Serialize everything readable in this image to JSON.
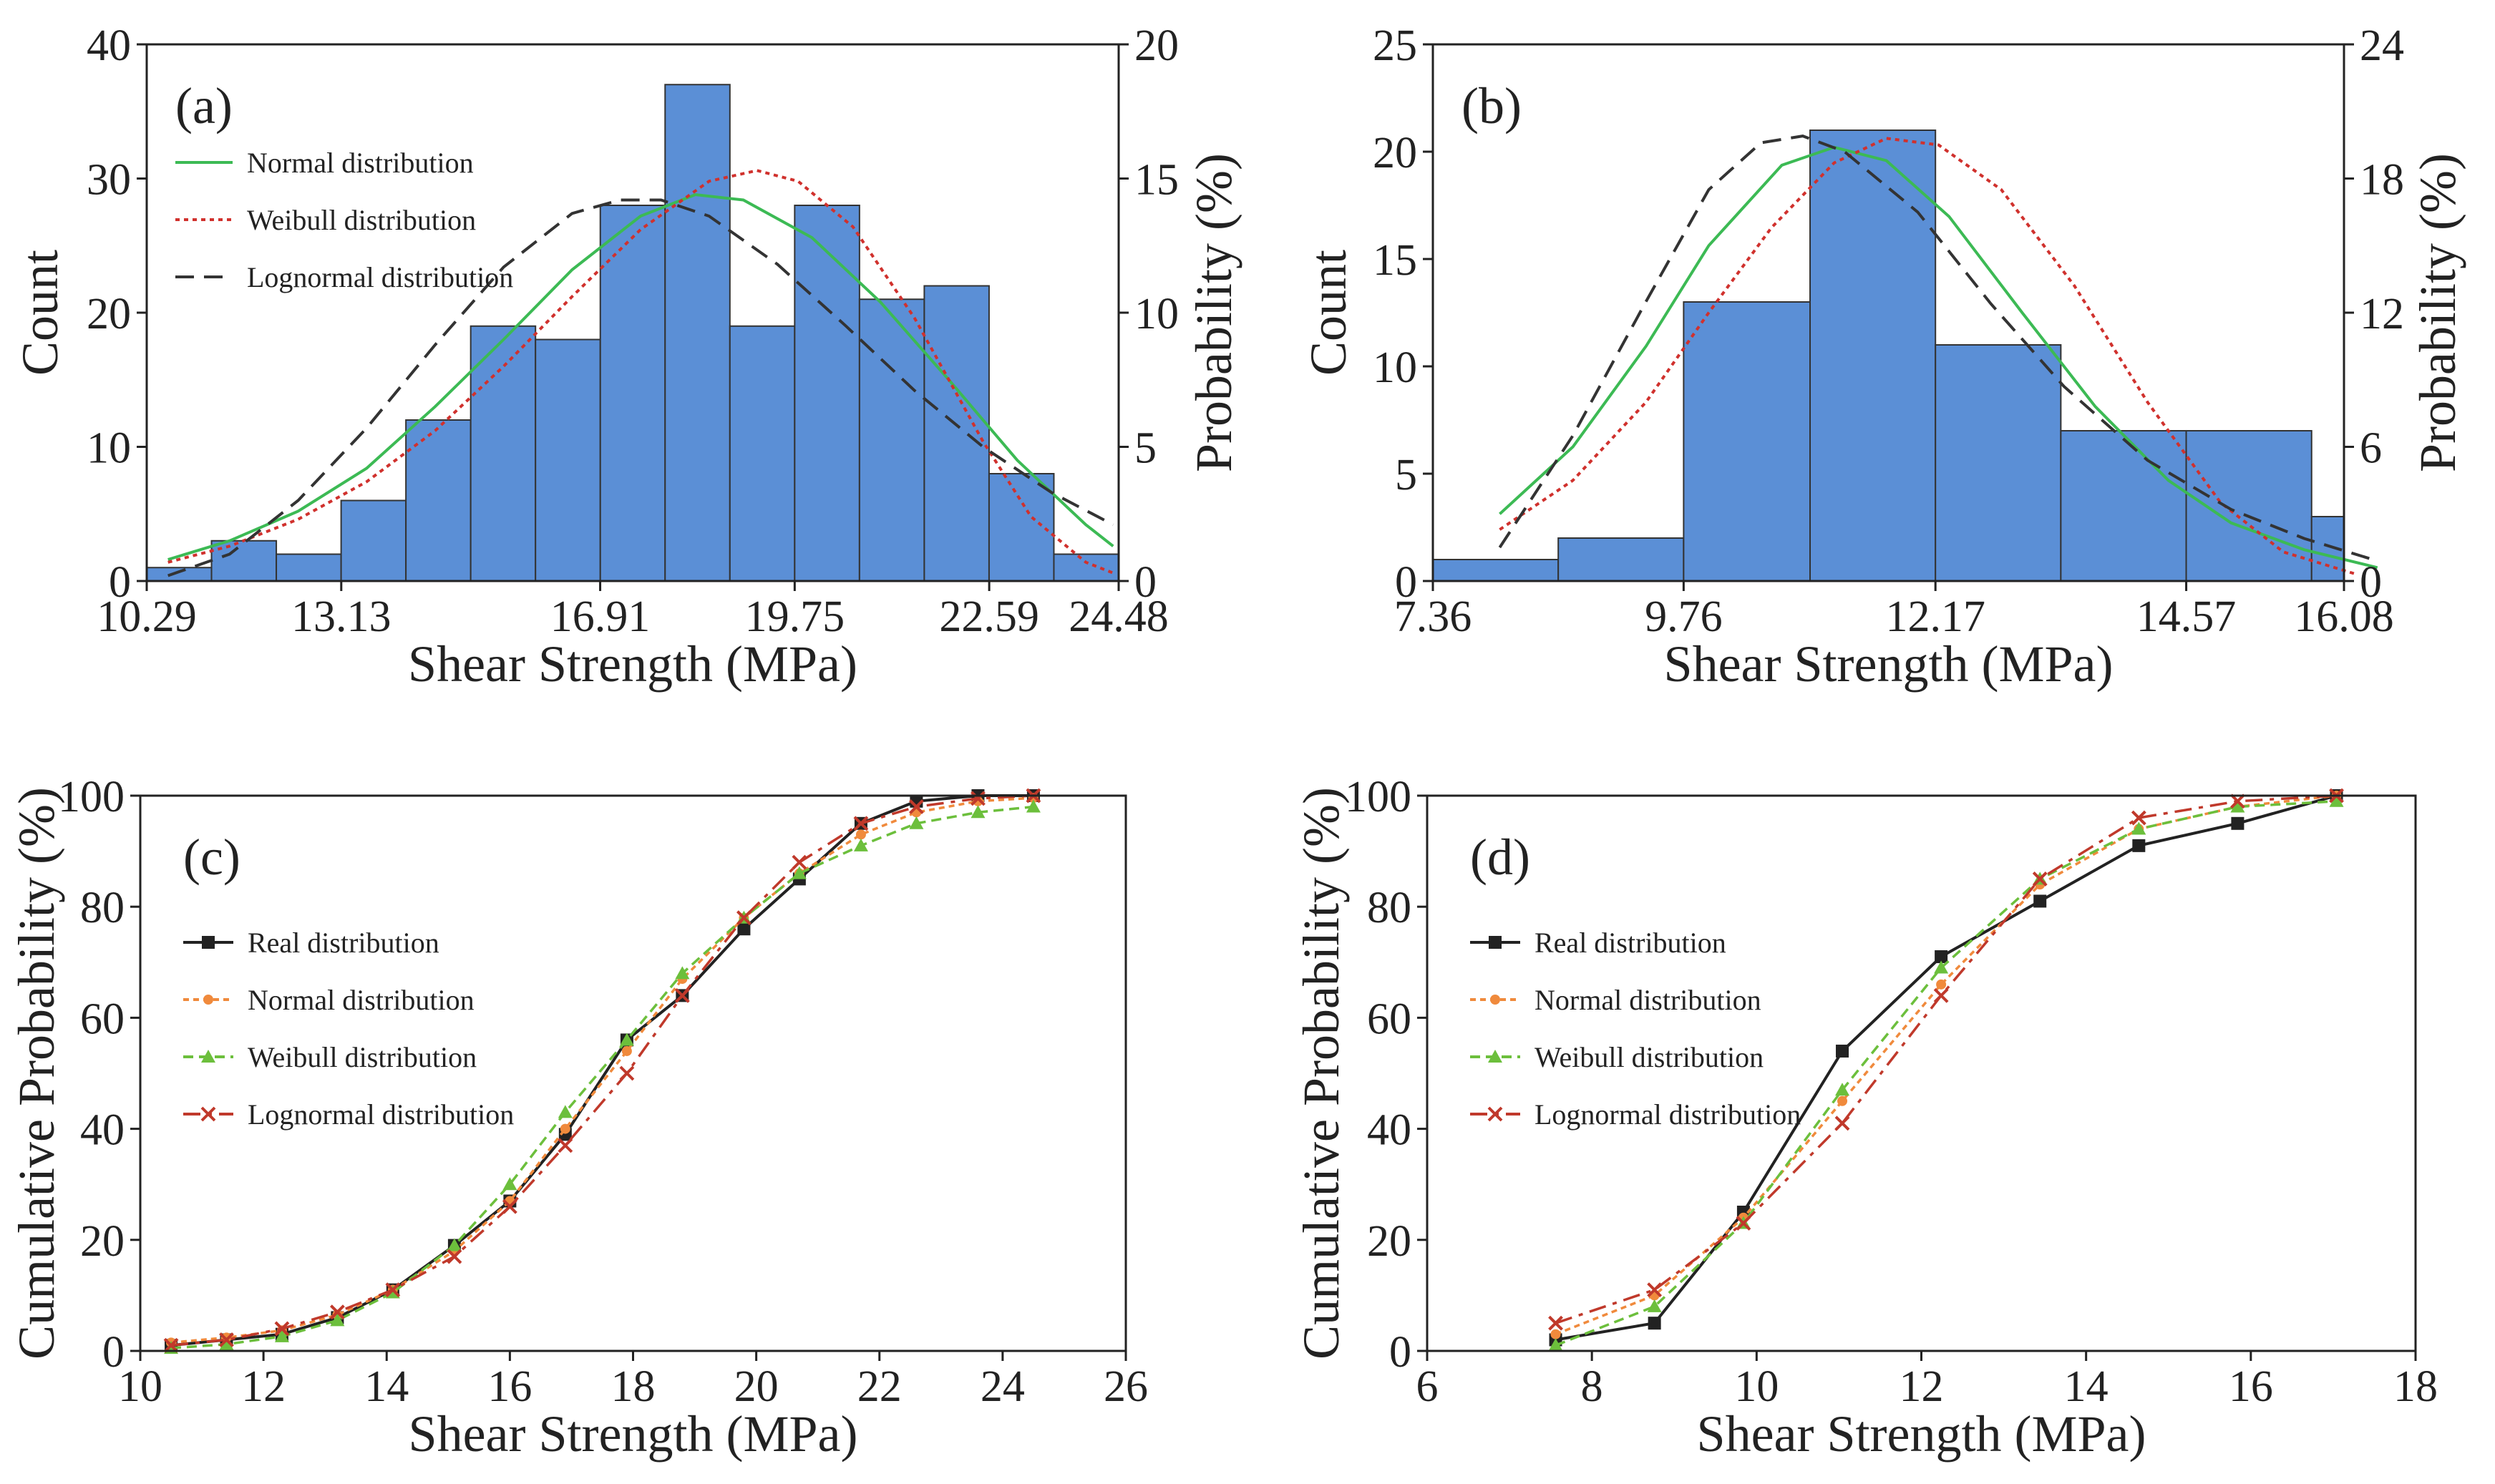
{
  "panels": [
    {
      "id": "a",
      "label": "(a)",
      "type": "histogram",
      "x_ticks": [
        "10.29",
        "13.13",
        "16.91",
        "19.75",
        "22.59",
        "24.48"
      ],
      "y_left_ticks": [
        "0",
        "10",
        "20",
        "30",
        "40"
      ],
      "y_right_ticks": [
        "0",
        "5",
        "10",
        "15",
        "20"
      ],
      "xlabel": "Shear Strength (MPa)",
      "ylabel_left": "Count",
      "ylabel_right": "Probability (%)",
      "legend": [
        "Normal distribution",
        "Weibull distribution",
        "Lognormal distribution"
      ],
      "colors": {
        "bar": "#5b8fd6",
        "normal": "#3cba54",
        "weibull": "#d0312d",
        "lognormal": "#333333"
      }
    },
    {
      "id": "b",
      "label": "(b)",
      "type": "histogram",
      "x_ticks": [
        "7.36",
        "9.76",
        "12.17",
        "14.57",
        "16.08"
      ],
      "y_left_ticks": [
        "0",
        "5",
        "10",
        "15",
        "20",
        "25"
      ],
      "y_right_ticks": [
        "0",
        "6",
        "12",
        "18",
        "24"
      ],
      "xlabel": "Shear Strength (MPa)",
      "ylabel_left": "Count",
      "ylabel_right": "Probability (%)"
    },
    {
      "id": "c",
      "label": "(c)",
      "type": "line",
      "x_ticks": [
        "10",
        "12",
        "14",
        "16",
        "18",
        "20",
        "22",
        "24",
        "26"
      ],
      "y_ticks": [
        "0",
        "20",
        "40",
        "60",
        "80",
        "100"
      ],
      "xlabel": "Shear Strength (MPa)",
      "ylabel": "Cumulative Probability (%)",
      "legend": [
        "Real distribution",
        "Normal distribution",
        "Weibull distribution",
        "Lognormal distribution"
      ],
      "colors": {
        "real": "#222222",
        "normal": "#f08a3c",
        "weibull": "#6cbf3c",
        "lognormal": "#c0392b"
      }
    },
    {
      "id": "d",
      "label": "(d)",
      "type": "line",
      "x_ticks": [
        "6",
        "8",
        "10",
        "12",
        "14",
        "16",
        "18"
      ],
      "y_ticks": [
        "0",
        "20",
        "40",
        "60",
        "80",
        "100"
      ],
      "xlabel": "Shear Strength (MPa)",
      "ylabel": "Cumulative Probability (%)",
      "legend": [
        "Real distribution",
        "Normal distribution",
        "Weibull distribution",
        "Lognormal distribution"
      ]
    }
  ],
  "chart_data": [
    {
      "type": "bar",
      "panel": "a",
      "title": "(a)",
      "xlabel": "Shear Strength (MPa)",
      "ylabel": "Count",
      "y2label": "Probability (%)",
      "xlim": [
        10.29,
        24.48
      ],
      "ylim": [
        0,
        40
      ],
      "y2lim": [
        0,
        20
      ],
      "bin_edges": [
        10.29,
        11.236,
        12.182,
        13.128,
        14.074,
        15.02,
        15.966,
        16.912,
        17.858,
        18.804,
        19.75,
        20.696,
        21.642,
        22.588,
        23.534,
        24.48
      ],
      "values": [
        1,
        3,
        2,
        6,
        12,
        19,
        18,
        28,
        37,
        19,
        28,
        21,
        22,
        8,
        2
      ],
      "series": [
        {
          "name": "Normal distribution",
          "style": "solid",
          "x": [
            10.6,
            11.5,
            12.5,
            13.5,
            14.5,
            15.5,
            16.5,
            17.5,
            18.3,
            19.0,
            20.0,
            21.0,
            22.0,
            23.0,
            24.0,
            24.4
          ],
          "y": [
            0.8,
            1.5,
            2.6,
            4.2,
            6.5,
            9.0,
            11.6,
            13.6,
            14.4,
            14.2,
            12.8,
            10.4,
            7.5,
            4.5,
            2.1,
            1.3
          ]
        },
        {
          "name": "Weibull distribution",
          "style": "dotted",
          "x": [
            10.6,
            11.5,
            12.5,
            13.5,
            14.5,
            15.5,
            16.5,
            17.5,
            18.5,
            19.2,
            19.8,
            20.6,
            21.5,
            22.5,
            23.2,
            24.0,
            24.4
          ],
          "y": [
            0.7,
            1.3,
            2.3,
            3.7,
            5.6,
            8.0,
            10.6,
            13.1,
            14.9,
            15.3,
            14.9,
            13.2,
            9.8,
            5.2,
            2.4,
            0.7,
            0.3
          ]
        },
        {
          "name": "Lognormal distribution",
          "style": "dashed",
          "x": [
            10.6,
            11.5,
            12.5,
            13.5,
            14.5,
            15.5,
            16.5,
            17.2,
            17.8,
            18.5,
            19.5,
            20.5,
            21.5,
            22.5,
            23.5,
            24.4
          ],
          "y": [
            0.2,
            1.0,
            3.0,
            5.7,
            8.8,
            11.7,
            13.7,
            14.2,
            14.2,
            13.6,
            11.8,
            9.5,
            7.1,
            5.0,
            3.3,
            2.1
          ]
        }
      ]
    },
    {
      "type": "bar",
      "panel": "b",
      "title": "(b)",
      "xlabel": "Shear Strength (MPa)",
      "ylabel": "Count",
      "y2label": "Probability (%)",
      "xlim": [
        7.36,
        16.08
      ],
      "ylim": [
        0,
        25
      ],
      "y2lim": [
        0,
        24
      ],
      "bin_edges": [
        7.36,
        8.56,
        9.76,
        10.97,
        12.17,
        13.37,
        14.57,
        15.77,
        16.97
      ],
      "values": [
        1,
        2,
        13,
        21,
        11,
        7,
        7,
        3
      ],
      "series": [
        {
          "name": "Normal distribution",
          "style": "solid",
          "x": [
            8.0,
            8.7,
            9.4,
            10.0,
            10.7,
            11.2,
            11.7,
            12.3,
            13.0,
            13.7,
            14.4,
            15.0,
            15.7,
            16.4
          ],
          "y": [
            3.0,
            6.0,
            10.5,
            15.0,
            18.6,
            19.4,
            18.8,
            16.3,
            12.0,
            7.8,
            4.5,
            2.6,
            1.4,
            0.6
          ]
        },
        {
          "name": "Weibull distribution",
          "style": "dotted",
          "x": [
            8.0,
            8.7,
            9.4,
            10.0,
            10.6,
            11.2,
            11.7,
            12.2,
            12.8,
            13.5,
            14.2,
            14.9,
            15.5,
            16.2
          ],
          "y": [
            2.3,
            4.5,
            8.0,
            12.0,
            15.8,
            18.7,
            19.8,
            19.5,
            17.5,
            13.2,
            8.0,
            3.5,
            1.3,
            0.3
          ]
        },
        {
          "name": "Lognormal distribution",
          "style": "dashed",
          "x": [
            8.0,
            8.7,
            9.4,
            10.0,
            10.5,
            10.9,
            11.3,
            12.0,
            12.7,
            13.4,
            14.2,
            15.0,
            15.7,
            16.4
          ],
          "y": [
            1.5,
            6.5,
            12.5,
            17.5,
            19.6,
            19.9,
            19.2,
            16.5,
            12.4,
            8.7,
            5.4,
            3.2,
            1.9,
            0.9
          ]
        }
      ]
    },
    {
      "type": "line",
      "panel": "c",
      "title": "(c)",
      "xlabel": "Shear Strength (MPa)",
      "ylabel": "Cumulative Probability (%)",
      "xlim": [
        10,
        26
      ],
      "ylim": [
        0,
        100
      ],
      "x": [
        10.5,
        11.4,
        12.3,
        13.2,
        14.1,
        15.1,
        16.0,
        16.9,
        17.9,
        18.8,
        19.8,
        20.7,
        21.7,
        22.6,
        23.6,
        24.5
      ],
      "series": [
        {
          "name": "Real distribution",
          "values": [
            1,
            2,
            3,
            6,
            11,
            19,
            27,
            39,
            56,
            64,
            76,
            85,
            95,
            99,
            100,
            100
          ]
        },
        {
          "name": "Normal distribution",
          "values": [
            1.5,
            2.4,
            3.7,
            6.5,
            11,
            18,
            27,
            40,
            54,
            67,
            78,
            86,
            93,
            97,
            99,
            99.6
          ]
        },
        {
          "name": "Weibull distribution",
          "values": [
            0.5,
            1.2,
            2.6,
            5.5,
            10.5,
            19,
            30,
            43,
            56,
            68,
            78,
            86,
            91,
            95,
            97,
            98
          ]
        },
        {
          "name": "Lognormal distribution",
          "values": [
            1,
            2,
            4,
            7,
            11,
            17,
            26,
            37,
            50,
            64,
            78,
            88,
            95,
            98,
            99.5,
            100
          ]
        }
      ]
    },
    {
      "type": "line",
      "panel": "d",
      "title": "(d)",
      "xlabel": "Shear Strength (MPa)",
      "ylabel": "Cumulative Probability (%)",
      "xlim": [
        6,
        18
      ],
      "ylim": [
        0,
        100
      ],
      "x": [
        7.56,
        8.76,
        9.84,
        11.04,
        12.24,
        13.44,
        14.64,
        15.84,
        17.04
      ],
      "series": [
        {
          "name": "Real distribution",
          "values": [
            2,
            5,
            25,
            54,
            71,
            81,
            91,
            95,
            100
          ]
        },
        {
          "name": "Normal distribution",
          "values": [
            3,
            10,
            24,
            45,
            66,
            84,
            94,
            98,
            100
          ]
        },
        {
          "name": "Weibull distribution",
          "values": [
            1,
            8,
            23,
            47,
            69,
            85,
            94,
            98,
            99
          ]
        },
        {
          "name": "Lognormal distribution",
          "values": [
            5,
            11,
            23,
            41,
            64,
            85,
            96,
            99,
            100
          ]
        }
      ]
    }
  ]
}
